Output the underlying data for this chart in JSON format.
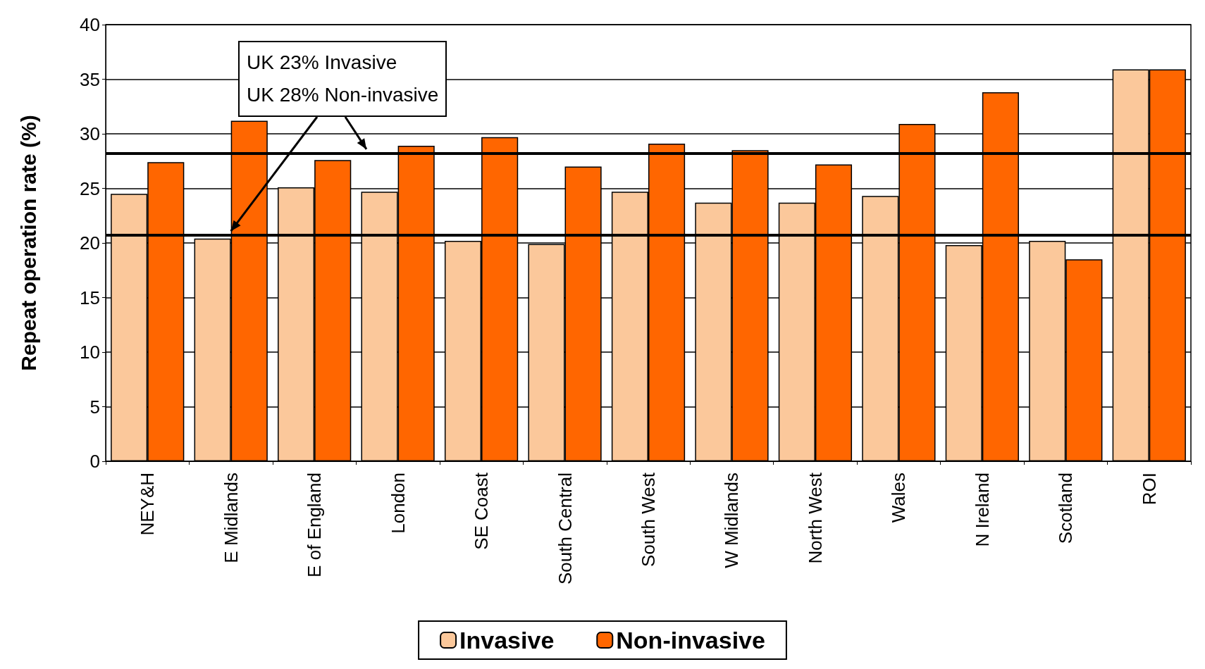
{
  "chart_data": {
    "type": "bar",
    "ylabel": "Repeat operation rate (%)",
    "categories": [
      "NEY&H",
      "E Midlands",
      "E of England",
      "London",
      "SE Coast",
      "South Central",
      "South West",
      "W Midlands",
      "North West",
      "Wales",
      "N Ireland",
      "Scotland",
      "ROI"
    ],
    "series": [
      {
        "name": "Invasive",
        "color": "#fbc89b",
        "values": [
          24.5,
          20.4,
          25.1,
          24.7,
          20.2,
          19.9,
          24.7,
          23.7,
          23.7,
          24.3,
          19.8,
          20.2,
          35.9
        ]
      },
      {
        "name": "Non-invasive",
        "color": "#ff6600",
        "values": [
          27.4,
          31.2,
          27.6,
          28.9,
          29.7,
          27.0,
          29.1,
          28.5,
          27.2,
          30.9,
          33.8,
          18.5,
          35.9
        ]
      }
    ],
    "ylim": [
      0,
      40
    ],
    "yticks": [
      0,
      5,
      10,
      15,
      20,
      25,
      30,
      35,
      40
    ],
    "grid": "y",
    "legend": "bottom",
    "annotations": [
      "UK 23% Invasive",
      {
        "text": "UK 28% Non-invasive",
        "y": 28.2
      }
    ],
    "ref_lines": [
      {
        "axis": "y",
        "value": 20.7,
        "color": "#000000"
      },
      {
        "axis": "y",
        "value": 28.2,
        "color": "#000000"
      }
    ]
  }
}
